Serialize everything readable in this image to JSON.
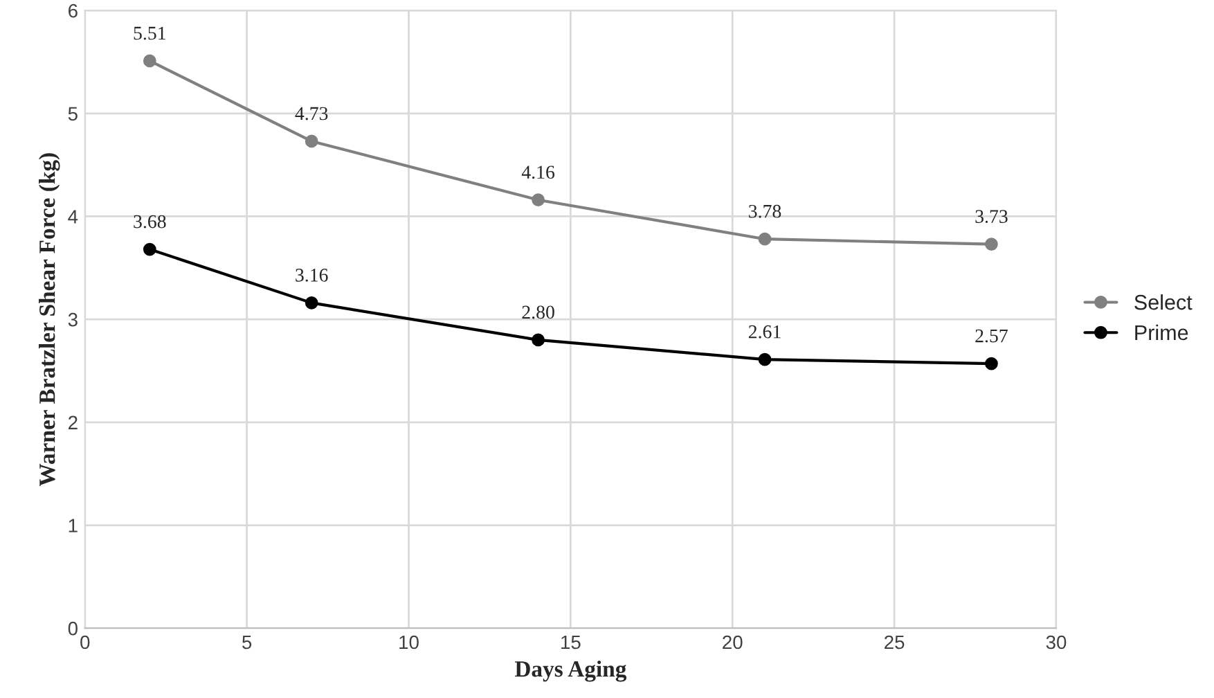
{
  "chart_data": {
    "type": "line",
    "xlabel": "Days Aging",
    "ylabel": "Warner Bratzler Shear Force (kg)",
    "x": [
      2,
      7,
      14,
      21,
      28
    ],
    "series": [
      {
        "name": "Select",
        "color": "#808080",
        "values": [
          5.51,
          4.73,
          4.16,
          3.78,
          3.73
        ],
        "value_labels": [
          "5.51",
          "4.73",
          "4.16",
          "3.78",
          "3.73"
        ]
      },
      {
        "name": "Prime",
        "color": "#000000",
        "values": [
          3.68,
          3.16,
          2.8,
          2.61,
          2.57
        ],
        "value_labels": [
          "3.68",
          "3.16",
          "2.80",
          "2.61",
          "2.57"
        ]
      }
    ],
    "xlim": [
      0,
      30
    ],
    "xticks": [
      0,
      5,
      10,
      15,
      20,
      25,
      30
    ],
    "ylim": [
      0,
      6
    ],
    "yticks": [
      0,
      1,
      2,
      3,
      4,
      5,
      6
    ],
    "grid": true,
    "legend": "right",
    "marker": "circle",
    "line_style": "solid"
  }
}
